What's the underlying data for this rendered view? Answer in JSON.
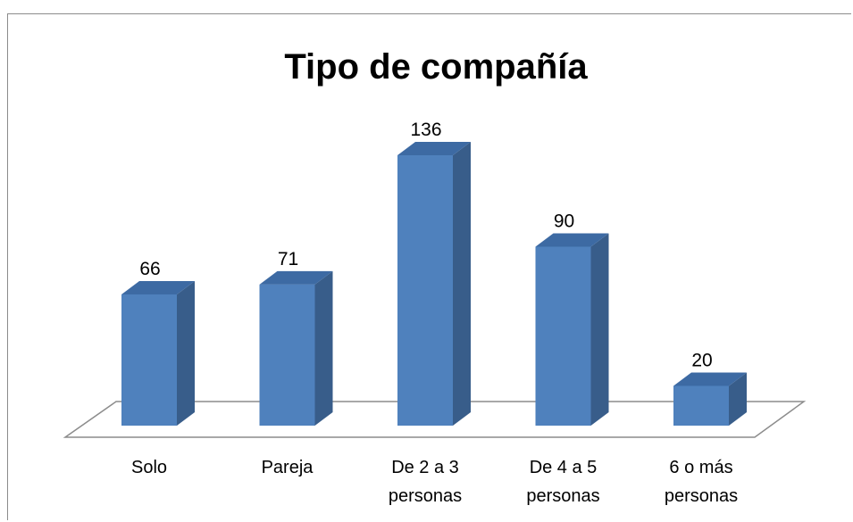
{
  "chart_data": {
    "type": "bar3d",
    "title": "Tipo de compañía",
    "categories": [
      "Solo",
      "Pareja",
      "De 2 a 3 personas",
      "De 4 a 5 personas",
      "6 o más personas"
    ],
    "values": [
      66,
      71,
      136,
      90,
      20
    ],
    "color": "#4f81bd"
  }
}
